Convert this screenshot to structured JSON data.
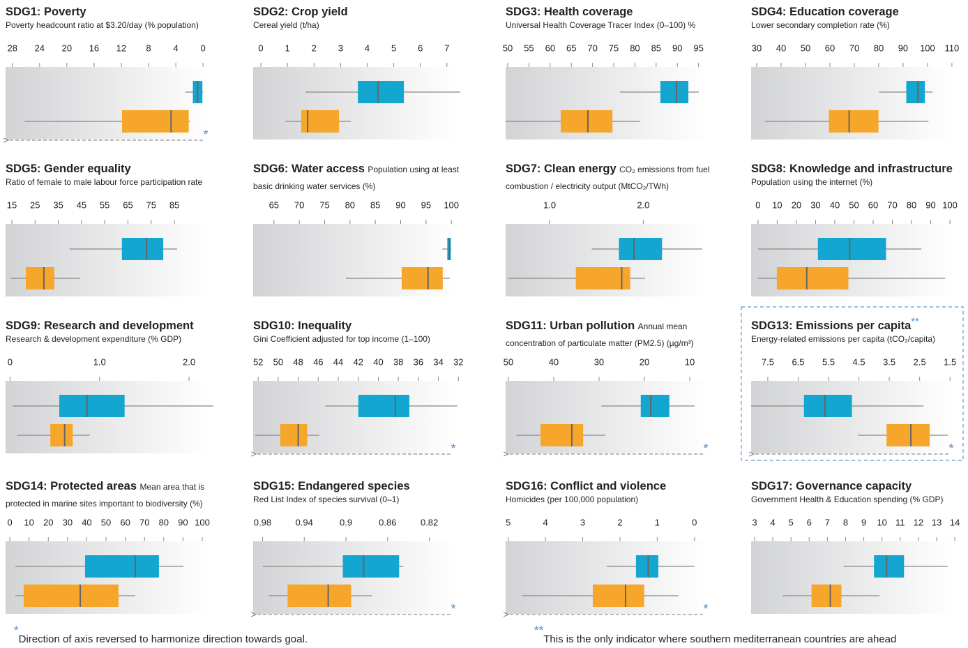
{
  "chart_data": [
    {
      "type": "box",
      "title": "SDG1: Poverty",
      "subtitle": "Poverty headcount ratio at $3.20/day (% population)",
      "marker": "*",
      "xlim": [
        29,
        -0.7
      ],
      "xticks": [
        28,
        24,
        20,
        16,
        12,
        8,
        4,
        0
      ],
      "series": [
        {
          "color": "#12a6d0",
          "values": [
            0,
            0.1,
            0.8,
            1.5,
            2.6
          ]
        },
        {
          "color": "#f6a62a",
          "values": [
            1.9,
            2.1,
            4.7,
            11.9,
            26.2
          ]
        }
      ]
    },
    {
      "type": "box",
      "title": "SDG2: Crop yield",
      "subtitle": "Cereal yield (t/ha)",
      "xlim": [
        -0.29,
        7.32
      ],
      "xticks": [
        0,
        1,
        2,
        3,
        4,
        5,
        6,
        7
      ],
      "series": [
        {
          "color": "#12a6d0",
          "values": [
            1.68,
            3.65,
            4.41,
            5.38,
            7.5
          ]
        },
        {
          "color": "#f6a62a",
          "values": [
            0.92,
            1.52,
            1.76,
            2.94,
            3.39
          ]
        }
      ]
    },
    {
      "type": "box",
      "title": "SDG3: Health coverage",
      "subtitle": "Universal Health Coverage Tracer Index (0–100) %",
      "xlim": [
        49.5,
        97.2
      ],
      "xticks": [
        50,
        55,
        60,
        65,
        70,
        75,
        80,
        85,
        90,
        95
      ],
      "series": [
        {
          "color": "#12a6d0",
          "values": [
            76.5,
            86.0,
            89.8,
            92.6,
            95.1
          ]
        },
        {
          "color": "#f6a62a",
          "values": [
            49.5,
            62.5,
            68.9,
            74.7,
            81.2
          ]
        }
      ]
    },
    {
      "type": "box",
      "title": "SDG4: Education coverage",
      "subtitle": "Lower secondary completion rate (%)",
      "xlim": [
        27.7,
        110.6
      ],
      "xticks": [
        30,
        40,
        50,
        60,
        70,
        80,
        90,
        100,
        110
      ],
      "series": [
        {
          "color": "#12a6d0",
          "values": [
            80.1,
            91.3,
            96.1,
            98.9,
            102.1
          ]
        },
        {
          "color": "#f6a62a",
          "values": [
            33.4,
            59.6,
            67.9,
            79.9,
            100.4
          ]
        }
      ]
    },
    {
      "type": "box",
      "title": "SDG5: Gender equality",
      "subtitle": "Ratio of female to male labour force participation rate",
      "xlim": [
        12.3,
        99.4
      ],
      "xticks": [
        15,
        25,
        35,
        45,
        55,
        65,
        75,
        85
      ],
      "series": [
        {
          "color": "#12a6d0",
          "values": [
            39.9,
            62.4,
            73.0,
            80.2,
            86.2
          ]
        },
        {
          "color": "#f6a62a",
          "values": [
            14.7,
            21.0,
            28.8,
            33.3,
            44.4
          ]
        }
      ]
    },
    {
      "type": "box",
      "title": "SDG6: Water access",
      "subtitle": "Population using at least basic drinking water services (%)",
      "xlim": [
        60.9,
        100.8
      ],
      "xticks": [
        65,
        70,
        75,
        80,
        85,
        90,
        95,
        100
      ],
      "series": [
        {
          "color": "#12a6d0",
          "values": [
            98.2,
            99.2,
            99.6,
            99.9,
            100
          ]
        },
        {
          "color": "#f6a62a",
          "values": [
            79.2,
            90.2,
            95.4,
            98.3,
            99.7
          ]
        }
      ]
    },
    {
      "type": "box",
      "title": "SDG7: Clean energy",
      "subtitle": "CO₂ emissions from fuel combustion / electricity output (MtCO₂/TWh)",
      "xlim": [
        0.53,
        2.69
      ],
      "xticks": [
        {
          "value": 1,
          "label": "1.0"
        },
        {
          "value": 2,
          "label": "2.0"
        }
      ],
      "series": [
        {
          "color": "#12a6d0",
          "values": [
            1.45,
            1.74,
            1.9,
            2.2,
            2.63
          ]
        },
        {
          "color": "#f6a62a",
          "values": [
            0.56,
            1.28,
            1.77,
            1.86,
            2.02
          ]
        }
      ]
    },
    {
      "type": "box",
      "title": "SDG8: Knowledge and infrastructure",
      "subtitle": "Population using the internet (%)",
      "xlim": [
        -3.6,
        101.8
      ],
      "xticks": [
        0,
        10,
        20,
        30,
        40,
        50,
        60,
        70,
        80,
        90,
        100
      ],
      "series": [
        {
          "color": "#12a6d0",
          "values": [
            0,
            31.2,
            47.8,
            66.7,
            85.1
          ]
        },
        {
          "color": "#f6a62a",
          "values": [
            0,
            9.8,
            25.4,
            47.1,
            97.5
          ]
        }
      ]
    },
    {
      "type": "box",
      "title": "SDG9: Research and development",
      "subtitle": "Research & development expenditure (% GDP)",
      "xlim": [
        -0.05,
        2.21
      ],
      "xticks": [
        0,
        {
          "value": 1,
          "label": "1.0"
        },
        {
          "value": 2,
          "label": "2.0"
        }
      ],
      "series": [
        {
          "color": "#12a6d0",
          "values": [
            0.03,
            0.55,
            0.86,
            1.28,
            2.27
          ]
        },
        {
          "color": "#f6a62a",
          "values": [
            0.08,
            0.45,
            0.61,
            0.7,
            0.89
          ]
        }
      ]
    },
    {
      "type": "box",
      "title": "SDG10: Inequality",
      "subtitle": "Gini Coefficient adjusted for top income (1–100)",
      "marker": "*",
      "xlim": [
        52.5,
        32.3
      ],
      "xticks": [
        52,
        50,
        48,
        46,
        44,
        42,
        40,
        38,
        36,
        34,
        32
      ],
      "series": [
        {
          "color": "#12a6d0",
          "values": [
            32.1,
            36.9,
            38.3,
            42.0,
            45.3
          ]
        },
        {
          "color": "#f6a62a",
          "values": [
            45.9,
            47.1,
            48.0,
            49.8,
            52.3
          ]
        }
      ]
    },
    {
      "type": "box",
      "title": "SDG11: Urban pollution",
      "subtitle": "Annual mean concentration of particulate matter (PM2.5) (µg/m³)",
      "marker": "*",
      "xlim": [
        50.6,
        6.0
      ],
      "xticks": [
        50,
        40,
        30,
        20,
        10
      ],
      "series": [
        {
          "color": "#12a6d0",
          "values": [
            8.9,
            14.5,
            18.6,
            20.8,
            29.5
          ]
        },
        {
          "color": "#f6a62a",
          "values": [
            28.6,
            33.5,
            36.0,
            42.9,
            48.2
          ]
        }
      ]
    },
    {
      "type": "box",
      "title": "SDG13: Emissions per capita",
      "title_marker": "**",
      "subtitle": "Energy-related emissions per capita (tCO₂/capita)",
      "marker": "*",
      "xlim": [
        8.05,
        1.39
      ],
      "xticks": [
        7.5,
        6.5,
        5.5,
        4.5,
        3.5,
        2.5,
        1.5
      ],
      "series": [
        {
          "color": "#12a6d0",
          "values": [
            2.37,
            4.73,
            5.62,
            6.31,
            8.05
          ]
        },
        {
          "color": "#f6a62a",
          "values": [
            1.57,
            2.17,
            2.79,
            3.59,
            4.53
          ]
        }
      ]
    },
    {
      "type": "box",
      "title": "SDG14: Protected areas",
      "subtitle": "Mean area that is protected in marine sites important to biodiversity (%)",
      "xlim": [
        -2.2,
        102.9
      ],
      "xticks": [
        0,
        10,
        20,
        30,
        40,
        50,
        60,
        70,
        80,
        90,
        100
      ],
      "series": [
        {
          "color": "#12a6d0",
          "values": [
            2.9,
            39.1,
            65.2,
            77.5,
            90.2
          ]
        },
        {
          "color": "#f6a62a",
          "values": [
            2.9,
            7.2,
            36.6,
            56.5,
            65.2
          ]
        }
      ]
    },
    {
      "type": "box",
      "title": "SDG15: Endangered species",
      "subtitle": "Red List Index of species survival (0–1)",
      "marker": "*",
      "xlim": [
        0.989,
        0.795
      ],
      "xticks": [
        0.98,
        0.94,
        0.9,
        0.86,
        0.82
      ],
      "series": [
        {
          "color": "#12a6d0",
          "values": [
            0.845,
            0.849,
            0.883,
            0.903,
            0.98
          ]
        },
        {
          "color": "#f6a62a",
          "values": [
            0.875,
            0.895,
            0.917,
            0.956,
            0.974
          ]
        }
      ]
    },
    {
      "type": "box",
      "title": "SDG16: Conflict and violence",
      "subtitle": "Homicides (per 100,000 population)",
      "marker": "*",
      "xlim": [
        5.07,
        -0.36
      ],
      "xticks": [
        5,
        4,
        3,
        2,
        1,
        0
      ],
      "series": [
        {
          "color": "#12a6d0",
          "values": [
            0,
            0.97,
            1.24,
            1.57,
            2.36
          ]
        },
        {
          "color": "#f6a62a",
          "values": [
            0.43,
            1.35,
            1.85,
            2.73,
            4.63
          ]
        }
      ]
    },
    {
      "type": "box",
      "title": "SDG17: Governance capacity",
      "subtitle": "Government Health & Education spending (% GDP)",
      "xlim": [
        2.81,
        13.92
      ],
      "xticks": [
        3,
        4,
        5,
        6,
        7,
        8,
        9,
        10,
        11,
        12,
        13,
        14
      ],
      "series": [
        {
          "color": "#12a6d0",
          "values": [
            7.89,
            9.56,
            10.25,
            11.21,
            13.6
          ]
        },
        {
          "color": "#f6a62a",
          "values": [
            4.53,
            6.13,
            7.16,
            7.77,
            9.87
          ]
        }
      ]
    }
  ],
  "footnotes": [
    {
      "mark": "*",
      "text": "Direction of axis reversed to harmonize direction towards goal."
    },
    {
      "mark": "**",
      "text": "This is the only indicator where southern mediterranean countries are ahead"
    }
  ]
}
